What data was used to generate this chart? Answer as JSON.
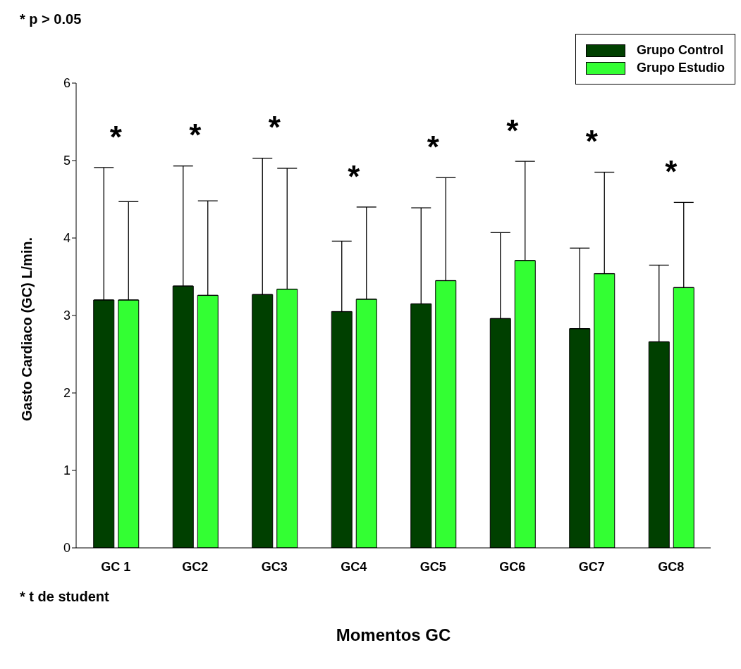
{
  "chart_data": {
    "type": "bar",
    "xlabel": "Momentos GC",
    "ylabel": "Gasto Cardiaco  (GC) L/min.",
    "categories": [
      "GC 1",
      "GC2",
      "GC3",
      "GC4",
      "GC5",
      "GC6",
      "GC7",
      "GC8"
    ],
    "series": [
      {
        "name": "Grupo Control",
        "color": "#004000",
        "values": [
          3.2,
          3.38,
          3.27,
          3.05,
          3.15,
          2.96,
          2.83,
          2.66
        ],
        "errors": [
          [
            3.2,
            4.91
          ],
          [
            3.38,
            4.93
          ],
          [
            3.27,
            5.03
          ],
          [
            3.05,
            3.96
          ],
          [
            3.15,
            4.39
          ],
          [
            2.96,
            4.07
          ],
          [
            2.83,
            3.87
          ],
          [
            2.66,
            3.65
          ]
        ]
      },
      {
        "name": "Grupo Estudio",
        "color": "#33ff33",
        "values": [
          3.2,
          3.26,
          3.34,
          3.21,
          3.45,
          3.71,
          3.54,
          3.36
        ],
        "errors": [
          [
            3.2,
            4.47
          ],
          [
            3.26,
            4.48
          ],
          [
            3.34,
            4.9
          ],
          [
            3.21,
            4.4
          ],
          [
            3.45,
            4.78
          ],
          [
            3.71,
            4.99
          ],
          [
            3.54,
            4.85
          ],
          [
            3.36,
            4.46
          ]
        ]
      }
    ],
    "ylim": [
      0,
      6
    ],
    "yticks": [
      0,
      1,
      2,
      3,
      4,
      5,
      6
    ],
    "grid": false,
    "legend": "top right",
    "annotations": [
      "* p > 0.05",
      "* t de student",
      "*",
      "*",
      "*",
      "*",
      "*",
      "*",
      "*",
      "*"
    ]
  }
}
